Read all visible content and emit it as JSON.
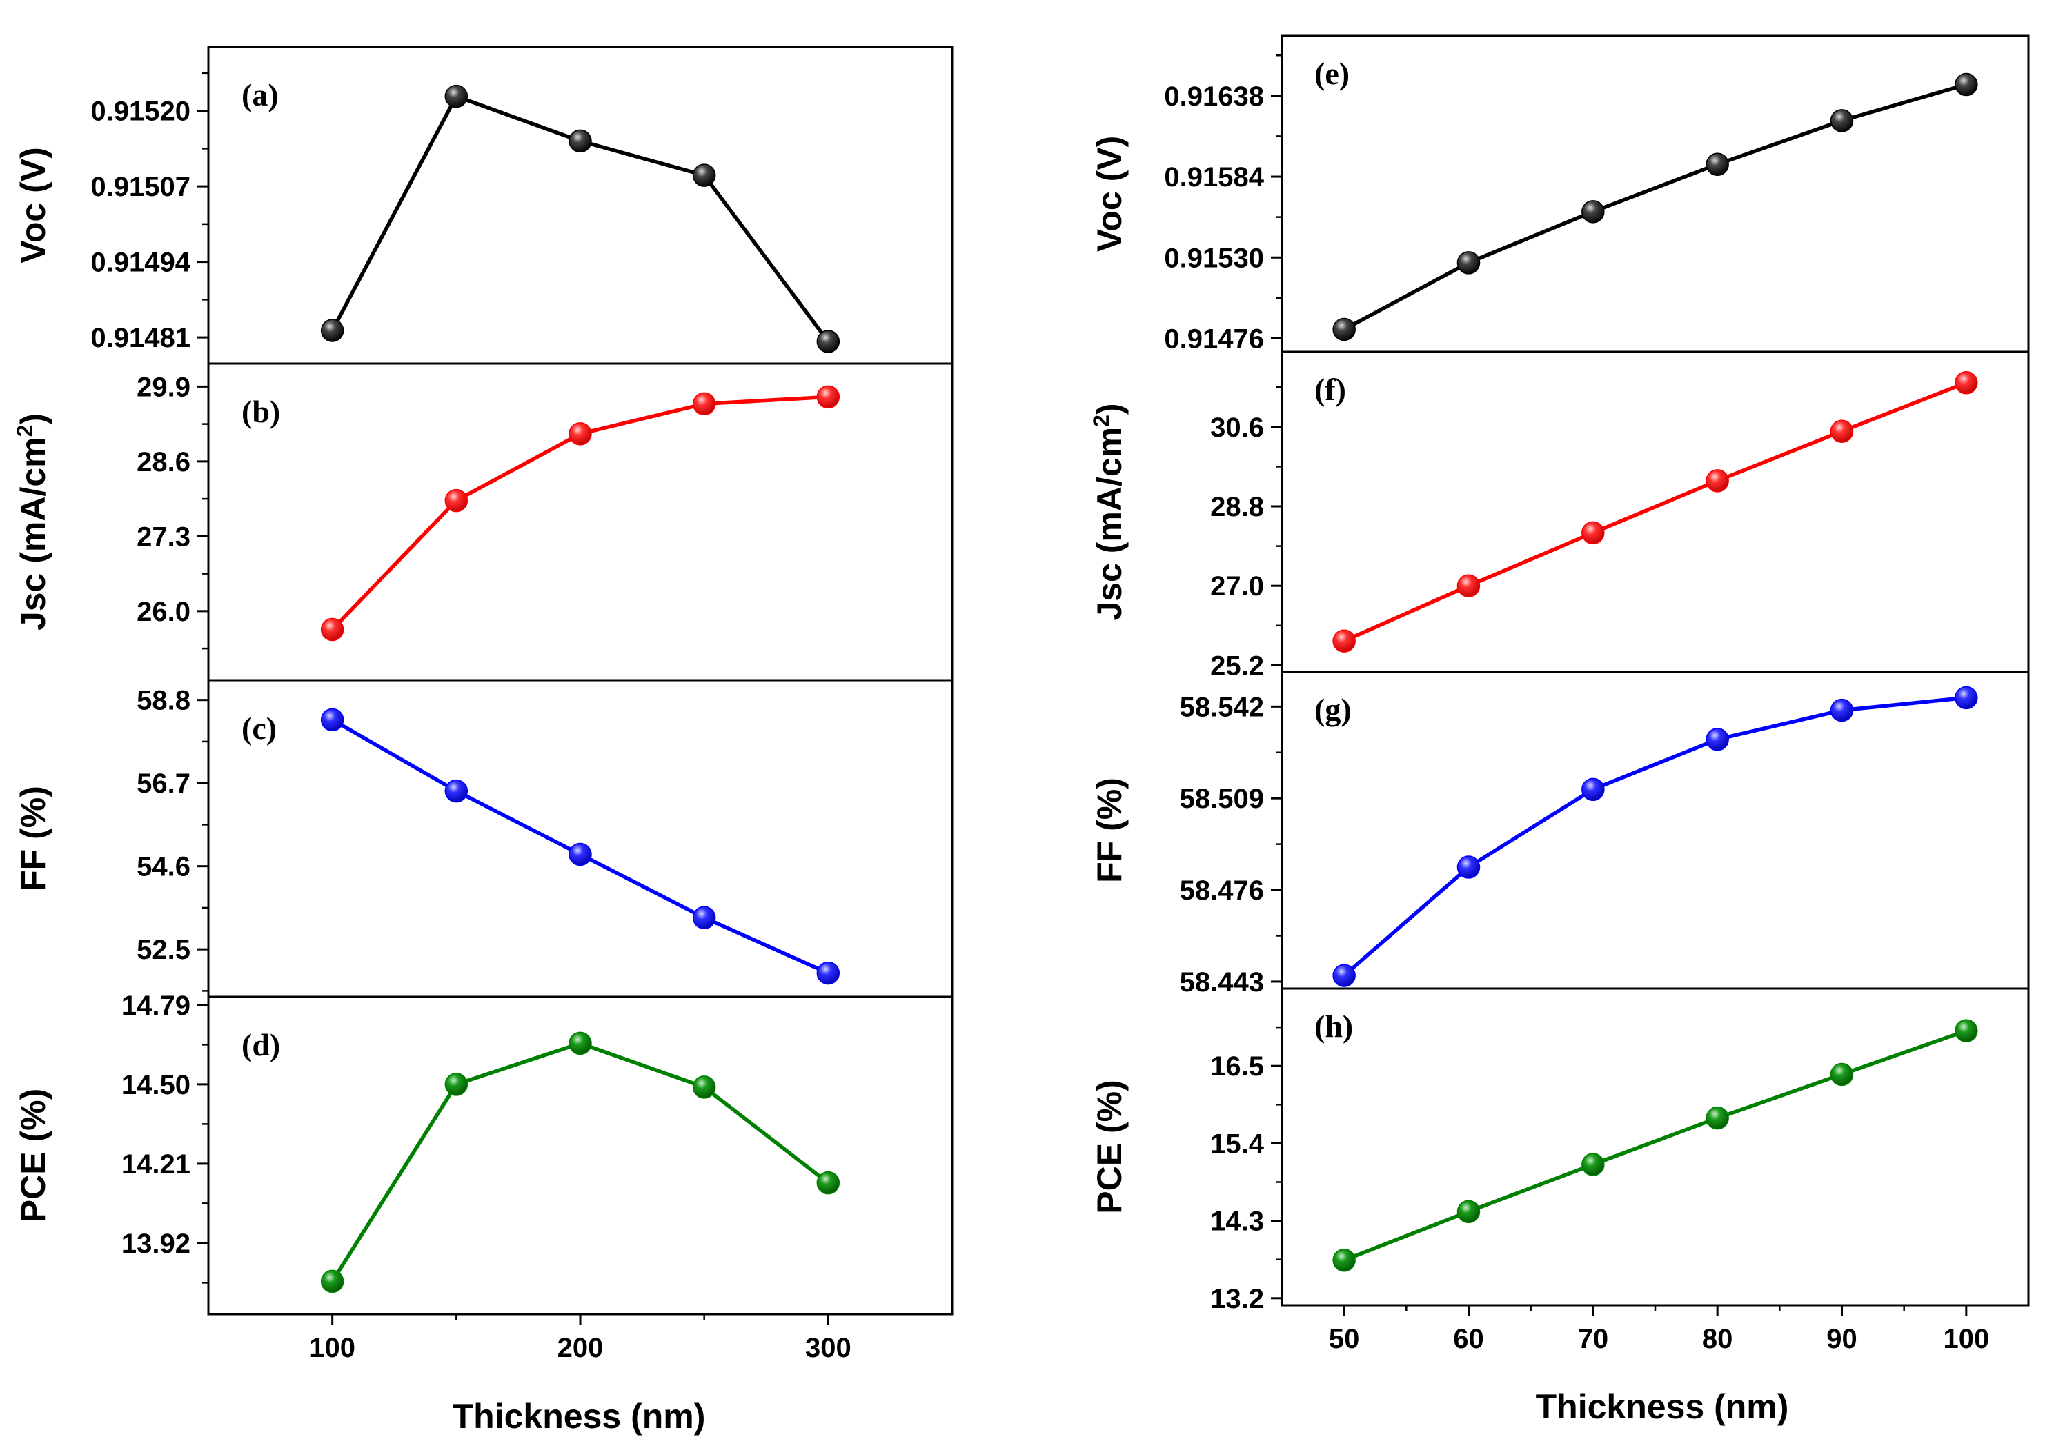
{
  "figure": {
    "xlabel_shared": "Thickness (nm)"
  },
  "columns": [
    {
      "name": "left",
      "xlabel": "Thickness (nm)",
      "xlim": [
        50,
        350
      ],
      "x_ticks": [
        100,
        200,
        300
      ],
      "x_minor": [
        150,
        250
      ]
    },
    {
      "name": "right",
      "xlabel": "Thickness (nm)",
      "xlim": [
        45,
        105
      ],
      "x_ticks": [
        50,
        60,
        70,
        80,
        90,
        100
      ],
      "x_minor": [
        55,
        65,
        75,
        85,
        95
      ]
    }
  ],
  "chart_data": [
    {
      "type": "line",
      "panel": "(a)",
      "column": "left",
      "row": 0,
      "ylabel": "Voc (V)",
      "ylabel_html": [
        "Voc (V)"
      ],
      "color": "#000000",
      "x": [
        100,
        150,
        200,
        250,
        300
      ],
      "values": [
        0.914822,
        0.915225,
        0.915148,
        0.915089,
        0.914803
      ],
      "ylim": [
        0.914765,
        0.91531
      ],
      "y_ticks": [
        0.91481,
        0.91494,
        0.91507,
        0.9152
      ],
      "y_tick_labels": [
        "0.91481",
        "0.91494",
        "0.91507",
        "0.91520"
      ]
    },
    {
      "type": "line",
      "panel": "(b)",
      "column": "left",
      "row": 1,
      "ylabel": "Jsc (mA/cm2)",
      "ylabel_parts": [
        "Jsc (mA/cm",
        "2",
        ")"
      ],
      "color": "#ff0000",
      "x": [
        100,
        150,
        200,
        250,
        300
      ],
      "values": [
        25.68,
        27.92,
        29.08,
        29.6,
        29.72
      ],
      "ylim": [
        24.8,
        30.3
      ],
      "y_ticks": [
        26.0,
        27.3,
        28.6,
        29.9
      ],
      "y_tick_labels": [
        "26.0",
        "27.3",
        "28.6",
        "29.9"
      ]
    },
    {
      "type": "line",
      "panel": "(c)",
      "column": "left",
      "row": 2,
      "ylabel": "FF (%)",
      "color": "#0000ff",
      "x": [
        100,
        150,
        200,
        250,
        300
      ],
      "values": [
        58.3,
        56.5,
        54.9,
        53.3,
        51.9
      ],
      "ylim": [
        51.3,
        59.3
      ],
      "y_ticks": [
        52.5,
        54.6,
        56.7,
        58.8
      ],
      "y_tick_labels": [
        "52.5",
        "54.6",
        "56.7",
        "58.8"
      ]
    },
    {
      "type": "line",
      "panel": "(d)",
      "column": "left",
      "row": 3,
      "ylabel": "PCE (%)",
      "color": "#008000",
      "x": [
        100,
        150,
        200,
        250,
        300
      ],
      "values": [
        13.78,
        14.5,
        14.65,
        14.49,
        14.14
      ],
      "ylim": [
        13.66,
        14.82
      ],
      "y_ticks": [
        13.92,
        14.21,
        14.5,
        14.79
      ],
      "y_tick_labels": [
        "13.92",
        "14.21",
        "14.50",
        "14.79"
      ]
    },
    {
      "type": "line",
      "panel": "(e)",
      "column": "right",
      "row": 0,
      "ylabel": "Voc (V)",
      "color": "#000000",
      "x": [
        50,
        60,
        70,
        80,
        90,
        100
      ],
      "values": [
        0.91482,
        0.915265,
        0.915606,
        0.915922,
        0.916214,
        0.916455
      ],
      "ylim": [
        0.91467,
        0.91678
      ],
      "y_ticks": [
        0.91476,
        0.9153,
        0.91584,
        0.91638
      ],
      "y_tick_labels": [
        "0.91476",
        "0.91530",
        "0.91584",
        "0.91638"
      ]
    },
    {
      "type": "line",
      "panel": "(f)",
      "column": "right",
      "row": 1,
      "ylabel": "Jsc (mA/cm2)",
      "ylabel_parts": [
        "Jsc (mA/cm",
        "2",
        ")"
      ],
      "color": "#ff0000",
      "x": [
        50,
        60,
        70,
        80,
        90,
        100
      ],
      "values": [
        25.75,
        27.0,
        28.2,
        29.38,
        30.5,
        31.6
      ],
      "ylim": [
        25.05,
        32.3
      ],
      "y_ticks": [
        25.2,
        27.0,
        28.8,
        30.6
      ],
      "y_tick_labels": [
        "25.2",
        "27.0",
        "28.8",
        "30.6"
      ]
    },
    {
      "type": "line",
      "panel": "(g)",
      "column": "right",
      "row": 2,
      "ylabel": "FF (%)",
      "color": "#0000ff",
      "x": [
        50,
        60,
        70,
        80,
        90,
        100
      ],
      "values": [
        58.4452,
        58.4842,
        58.5122,
        58.5302,
        58.5407,
        58.5452
      ],
      "ylim": [
        58.4405,
        58.5545
      ],
      "y_ticks": [
        58.443,
        58.476,
        58.509,
        58.542
      ],
      "y_tick_labels": [
        "58.443",
        "58.476",
        "58.509",
        "58.542"
      ]
    },
    {
      "type": "line",
      "panel": "(h)",
      "column": "right",
      "row": 3,
      "ylabel": "PCE (%)",
      "color": "#008000",
      "x": [
        50,
        60,
        70,
        80,
        90,
        100
      ],
      "values": [
        13.74,
        14.43,
        15.1,
        15.76,
        16.38,
        17.0
      ],
      "ylim": [
        13.1,
        17.6
      ],
      "y_ticks": [
        13.2,
        14.3,
        15.4,
        16.5
      ],
      "y_tick_labels": [
        "13.2",
        "14.3",
        "15.4",
        "16.5"
      ]
    }
  ]
}
